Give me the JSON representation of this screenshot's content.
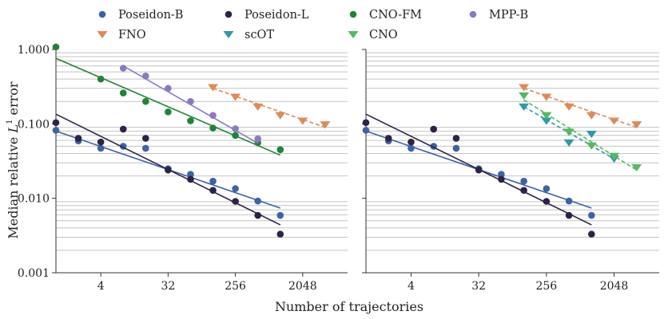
{
  "chart_data": {
    "type": "scatter",
    "xscale": "log2",
    "yscale": "log10",
    "xlabel": "Number of trajectories",
    "ylabel_prefix": "Median relative ",
    "ylabel_L": "L",
    "ylabel_sup": "1",
    "ylabel_suffix": " error",
    "xlim": [
      1,
      8192
    ],
    "ylim": [
      0.001,
      1.0
    ],
    "xticks": [
      4,
      32,
      256,
      2048
    ],
    "xtick_labels": [
      "4",
      "32",
      "256",
      "2048"
    ],
    "yticks": [
      0.001,
      0.01,
      0.1,
      1.0
    ],
    "ytick_labels": [
      "0.001",
      "0.010",
      "0.100",
      "1.000"
    ],
    "grid": "horizontal minor",
    "legend_position": "top",
    "series_style": {
      "Poseidon-B": {
        "color": "#3b63a6",
        "marker": "circle"
      },
      "Poseidon-L": {
        "color": "#2d2248",
        "marker": "circle"
      },
      "CNO-FM": {
        "color": "#1f8437",
        "marker": "circle"
      },
      "MPP-B": {
        "color": "#8b7ac0",
        "marker": "circle"
      },
      "FNO": {
        "color": "#dd8a57",
        "marker": "triangle-down"
      },
      "scOT": {
        "color": "#2e9aa8",
        "marker": "triangle-down"
      },
      "CNO": {
        "color": "#54b960",
        "marker": "triangle-down"
      }
    },
    "legend": [
      "Poseidon-B",
      "Poseidon-L",
      "CNO-FM",
      "MPP-B",
      "FNO",
      "scOT",
      "CNO"
    ],
    "panels": [
      {
        "series": [
          {
            "name": "Poseidon-B",
            "x": [
              1,
              2,
              4,
              8,
              16,
              32,
              64,
              128,
              256,
              512,
              1024
            ],
            "y": [
              0.082,
              0.059,
              0.047,
              0.05,
              0.047,
              0.025,
              0.021,
              0.017,
              0.0135,
              0.0092,
              0.0059
            ],
            "fit": {
              "x": [
                1,
                1024
              ],
              "y": [
                0.08,
                0.0074
              ],
              "dashed": false
            }
          },
          {
            "name": "Poseidon-L",
            "x": [
              1,
              2,
              4,
              8,
              16,
              32,
              64,
              128,
              256,
              512,
              1024
            ],
            "y": [
              0.104,
              0.064,
              0.057,
              0.085,
              0.064,
              0.024,
              0.018,
              0.0128,
              0.0091,
              0.0059,
              0.0033
            ],
            "fit": {
              "x": [
                1,
                1024
              ],
              "y": [
                0.135,
                0.0044
              ],
              "dashed": false
            }
          },
          {
            "name": "CNO-FM",
            "x": [
              1,
              4,
              8,
              16,
              32,
              64,
              128,
              256,
              512,
              1024
            ],
            "y": [
              1.08,
              0.4,
              0.26,
              0.2,
              0.145,
              0.11,
              0.088,
              0.07,
              0.056,
              0.045
            ],
            "fit": {
              "x": [
                1,
                1024
              ],
              "y": [
                0.76,
                0.038
              ],
              "dashed": false
            }
          },
          {
            "name": "MPP-B",
            "x": [
              8,
              16,
              32,
              64,
              128,
              256,
              512
            ],
            "y": [
              0.56,
              0.44,
              0.3,
              0.2,
              0.13,
              0.086,
              0.063
            ],
            "fit": {
              "x": [
                8,
                512
              ],
              "y": [
                0.6,
                0.055
              ],
              "dashed": false
            }
          },
          {
            "name": "FNO",
            "x": [
              128,
              256,
              512,
              1024,
              2048,
              4096
            ],
            "y": [
              0.31,
              0.23,
              0.17,
              0.13,
              0.11,
              0.098
            ],
            "fit": {
              "x": [
                128,
                4096
              ],
              "y": [
                0.3,
                0.09
              ],
              "dashed": true
            }
          }
        ]
      },
      {
        "series": [
          {
            "name": "Poseidon-B",
            "x": [
              1,
              2,
              4,
              8,
              16,
              32,
              64,
              128,
              256,
              512,
              1024
            ],
            "y": [
              0.082,
              0.059,
              0.047,
              0.05,
              0.047,
              0.025,
              0.021,
              0.017,
              0.0135,
              0.0092,
              0.0059
            ],
            "fit": {
              "x": [
                1,
                1024
              ],
              "y": [
                0.08,
                0.0074
              ],
              "dashed": false
            }
          },
          {
            "name": "Poseidon-L",
            "x": [
              1,
              2,
              4,
              8,
              16,
              32,
              64,
              128,
              256,
              512,
              1024
            ],
            "y": [
              0.104,
              0.064,
              0.057,
              0.085,
              0.064,
              0.024,
              0.018,
              0.0128,
              0.0091,
              0.0059,
              0.0033
            ],
            "fit": {
              "x": [
                1,
                1024
              ],
              "y": [
                0.135,
                0.0044
              ],
              "dashed": false
            }
          },
          {
            "name": "FNO",
            "x": [
              128,
              256,
              512,
              1024,
              2048,
              4096
            ],
            "y": [
              0.31,
              0.23,
              0.17,
              0.13,
              0.11,
              0.098
            ],
            "fit": {
              "x": [
                128,
                4096
              ],
              "y": [
                0.3,
                0.09
              ],
              "dashed": true
            }
          },
          {
            "name": "scOT",
            "x": [
              128,
              256,
              512,
              1024,
              2048
            ],
            "y": [
              0.17,
              0.11,
              0.056,
              0.073,
              0.034
            ],
            "fit": {
              "x": [
                128,
                2048
              ],
              "y": [
                0.17,
                0.034
              ],
              "dashed": true
            }
          },
          {
            "name": "CNO",
            "x": [
              128,
              256,
              512,
              1024,
              2048,
              4096
            ],
            "y": [
              0.24,
              0.13,
              0.078,
              0.051,
              0.037,
              0.026
            ],
            "fit": {
              "x": [
                128,
                4096
              ],
              "y": [
                0.21,
                0.024
              ],
              "dashed": true
            }
          }
        ]
      }
    ]
  }
}
